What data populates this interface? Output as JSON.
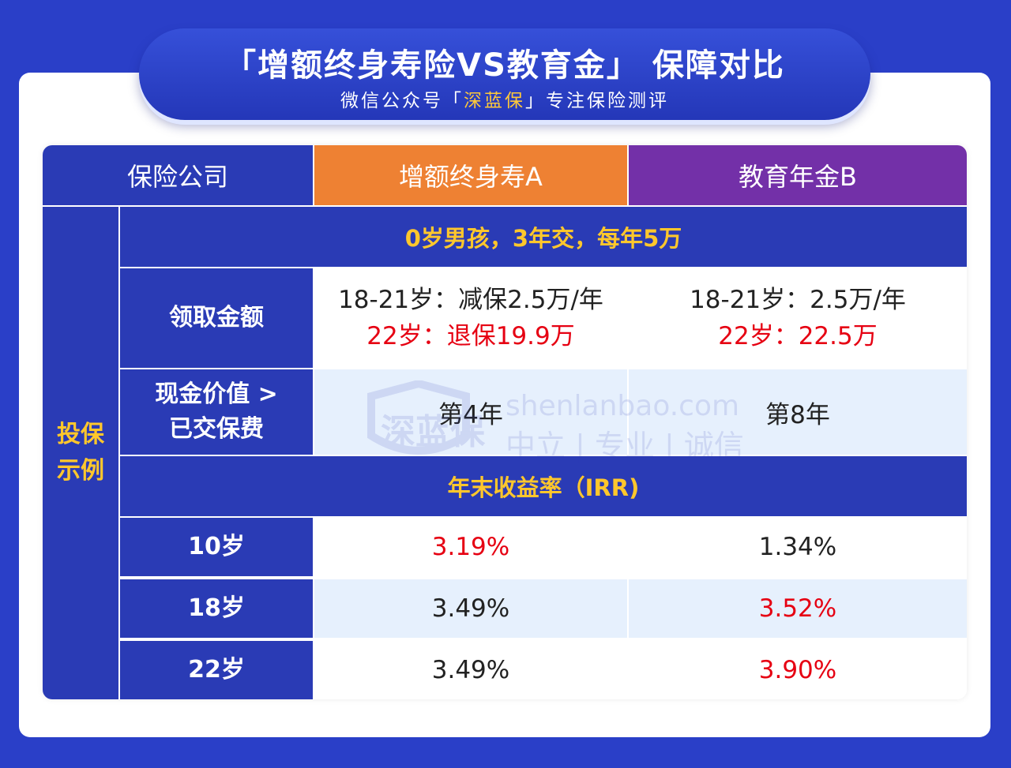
{
  "header": {
    "title": "「增额终身寿险VS教育金」 保障对比",
    "subtitle_prefix": "微信公众号「",
    "subtitle_brand": "深蓝保",
    "subtitle_suffix": "」专注保险测评"
  },
  "table": {
    "columns": {
      "company_label": "保险公司",
      "product_a": "增额终身寿A",
      "product_b": "教育年金B"
    },
    "section_label": "投保\n示例",
    "scenario": "0岁男孩，3年交，每年5万",
    "payout": {
      "label": "领取金额",
      "a_line1": "18-21岁：减保2.5万/年",
      "a_line2": "22岁：退保19.9万",
      "b_line1": "18-21岁：2.5万/年",
      "b_line2": "22岁：22.5万"
    },
    "cash_value": {
      "label_line1": "现金价值 >",
      "label_line2": "已交保费",
      "a": "第4年",
      "b": "第8年"
    },
    "irr_header": "年末收益率（IRR)",
    "irr_rows": [
      {
        "age": "10岁",
        "a": "3.19%",
        "b": "1.34%",
        "highlight": "a"
      },
      {
        "age": "18岁",
        "a": "3.49%",
        "b": "3.52%",
        "highlight": "b"
      },
      {
        "age": "22岁",
        "a": "3.49%",
        "b": "3.90%",
        "highlight": "b"
      }
    ]
  },
  "watermark": {
    "brand": "深蓝保",
    "url": "shenlanbao.com",
    "tagline": "中立 | 专业 | 诚信"
  },
  "colors": {
    "background": "#2a3fc8",
    "table_blue": "#2a3bb5",
    "product_a": "#ee8133",
    "product_b": "#7330a8",
    "highlight_yellow": "#ffc72c",
    "highlight_red": "#e60012",
    "row_light": "#e6f0fd"
  }
}
